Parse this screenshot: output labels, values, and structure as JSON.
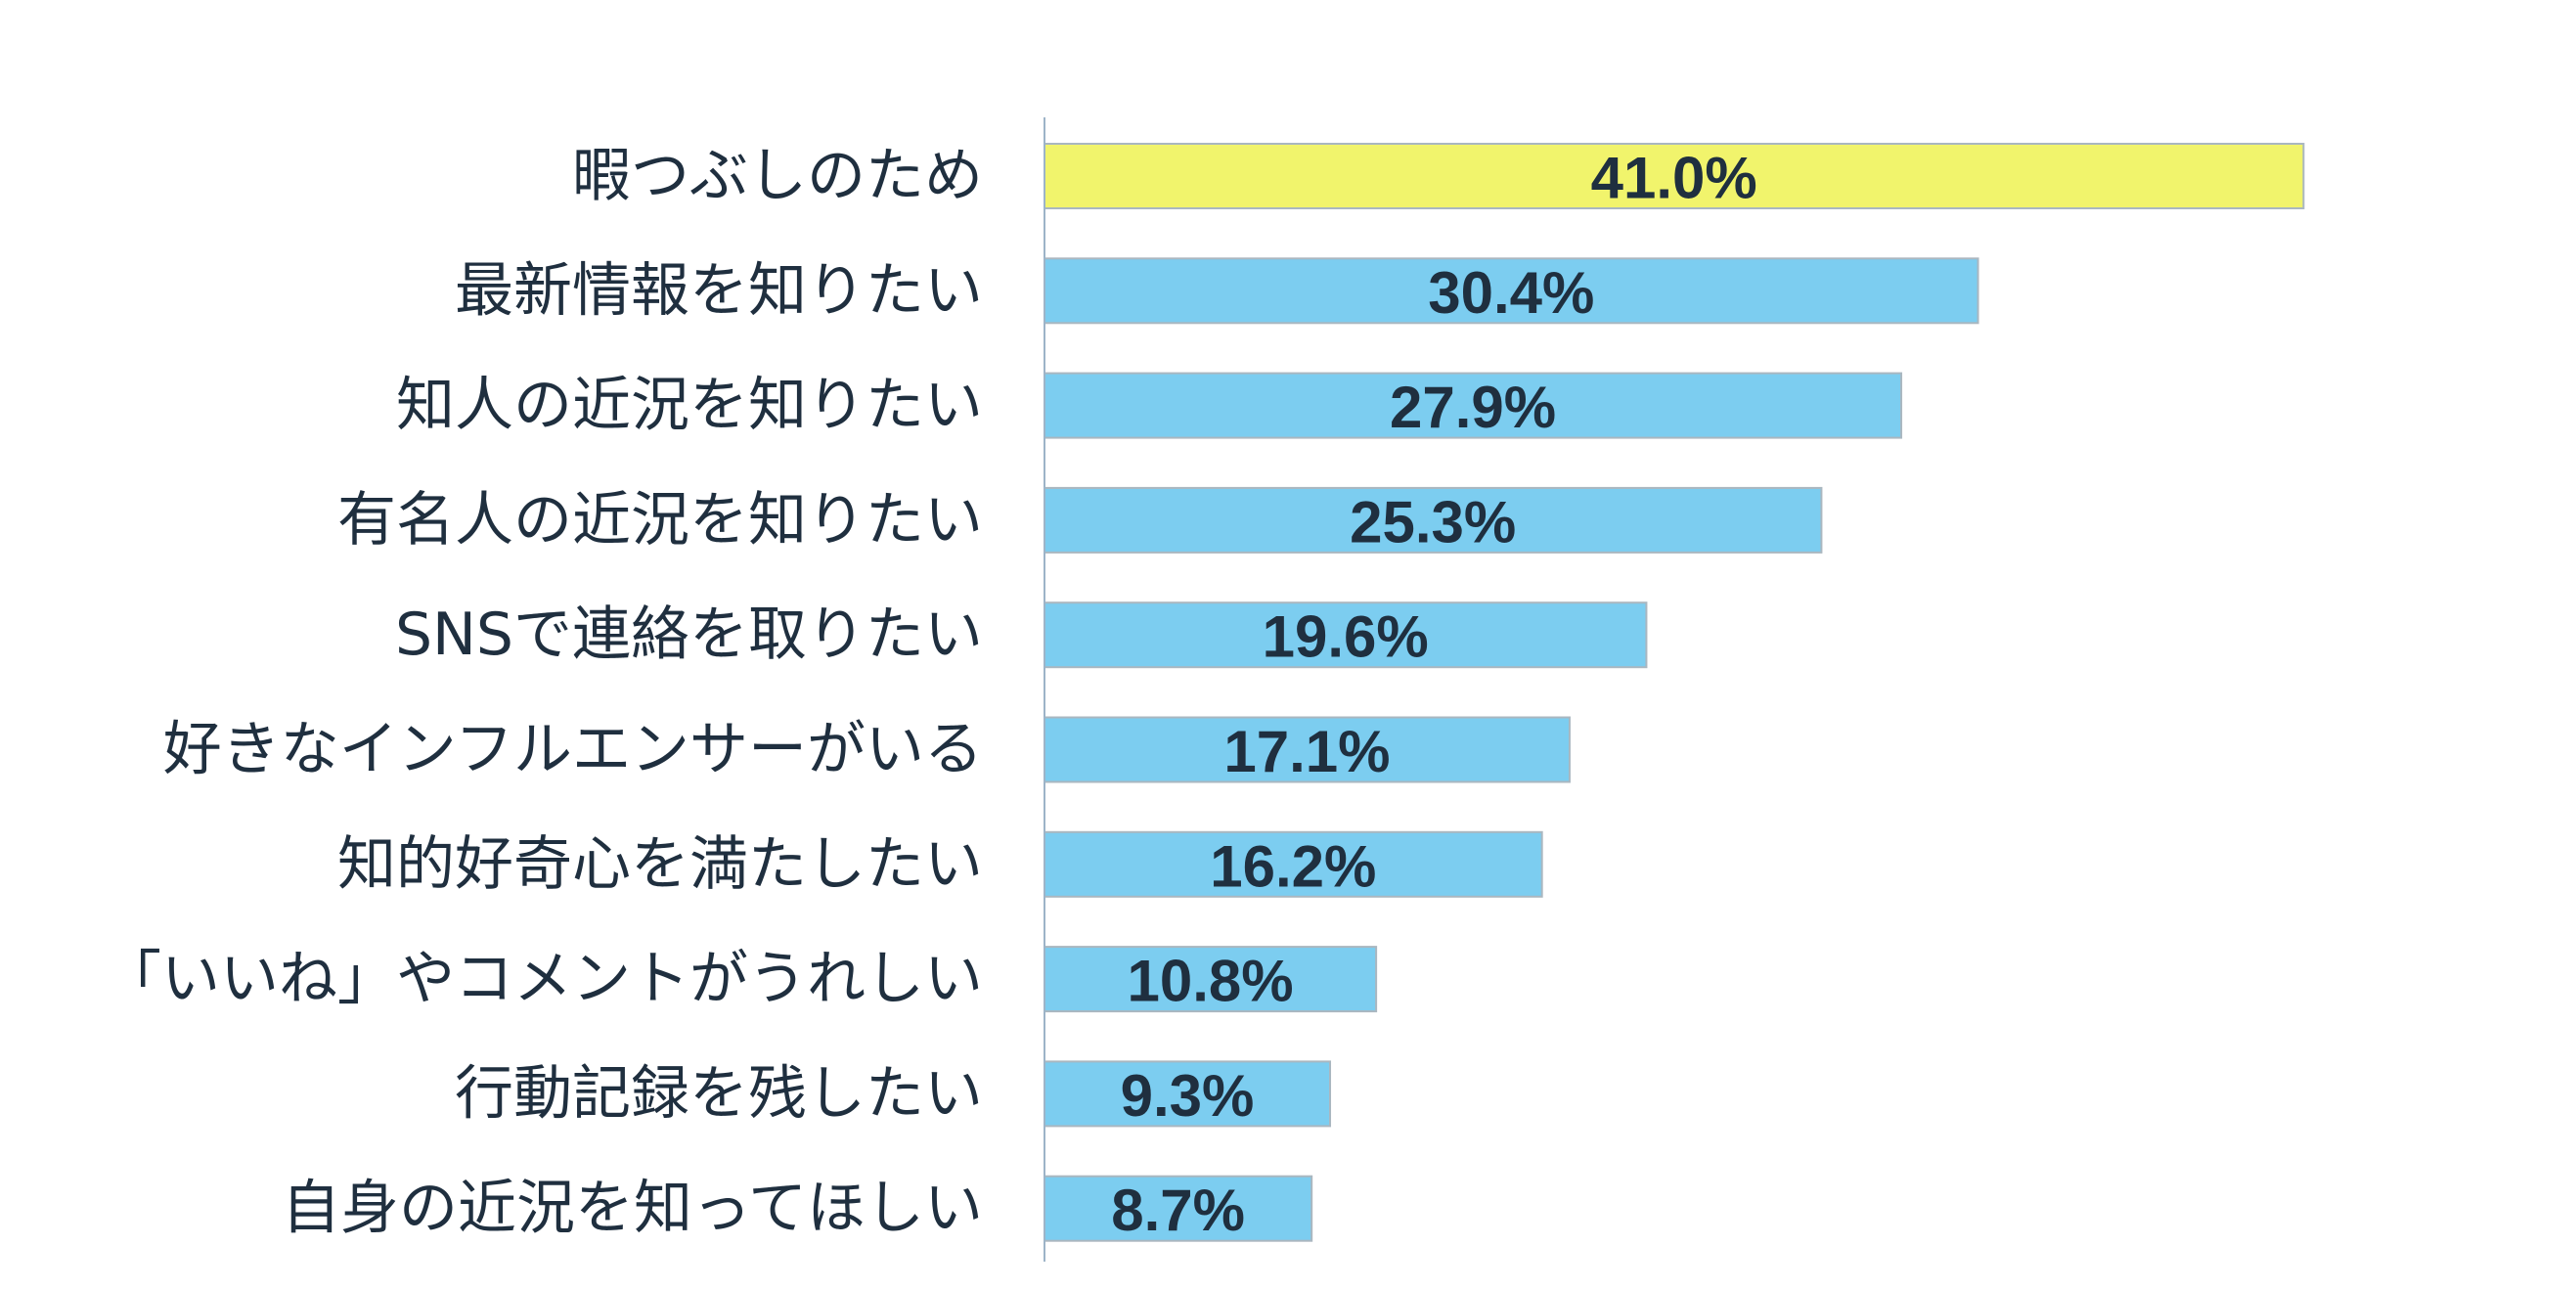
{
  "chart_data": {
    "type": "bar",
    "orientation": "horizontal",
    "categories": [
      "暇つぶしのため",
      "最新情報を知りたい",
      "知人の近況を知りたい",
      "有名人の近況を知りたい",
      "SNSで連絡を取りたい",
      "好きなインフルエンサーがいる",
      "知的好奇心を満たしたい",
      "「いいね」やコメントがうれしい",
      "行動記録を残したい",
      "自身の近況を知ってほしい"
    ],
    "values": [
      41.0,
      30.4,
      27.9,
      25.3,
      19.6,
      17.1,
      16.2,
      10.8,
      9.3,
      8.7
    ],
    "value_labels": [
      "41.0%",
      "30.4%",
      "27.9%",
      "25.3%",
      "19.6%",
      "17.1%",
      "16.2%",
      "10.8%",
      "9.3%",
      "8.7%"
    ],
    "title": "",
    "xlabel": "",
    "ylabel": "",
    "xlim": [
      0,
      48
    ],
    "grid": false,
    "legend": "none",
    "colors": {
      "highlight": "#f1f46c",
      "default": "#7ccdf0",
      "bar_edge": "#aab7c0",
      "axis": "#9db4c8",
      "text": "#1f2f3f"
    },
    "highlight_index": 0
  }
}
